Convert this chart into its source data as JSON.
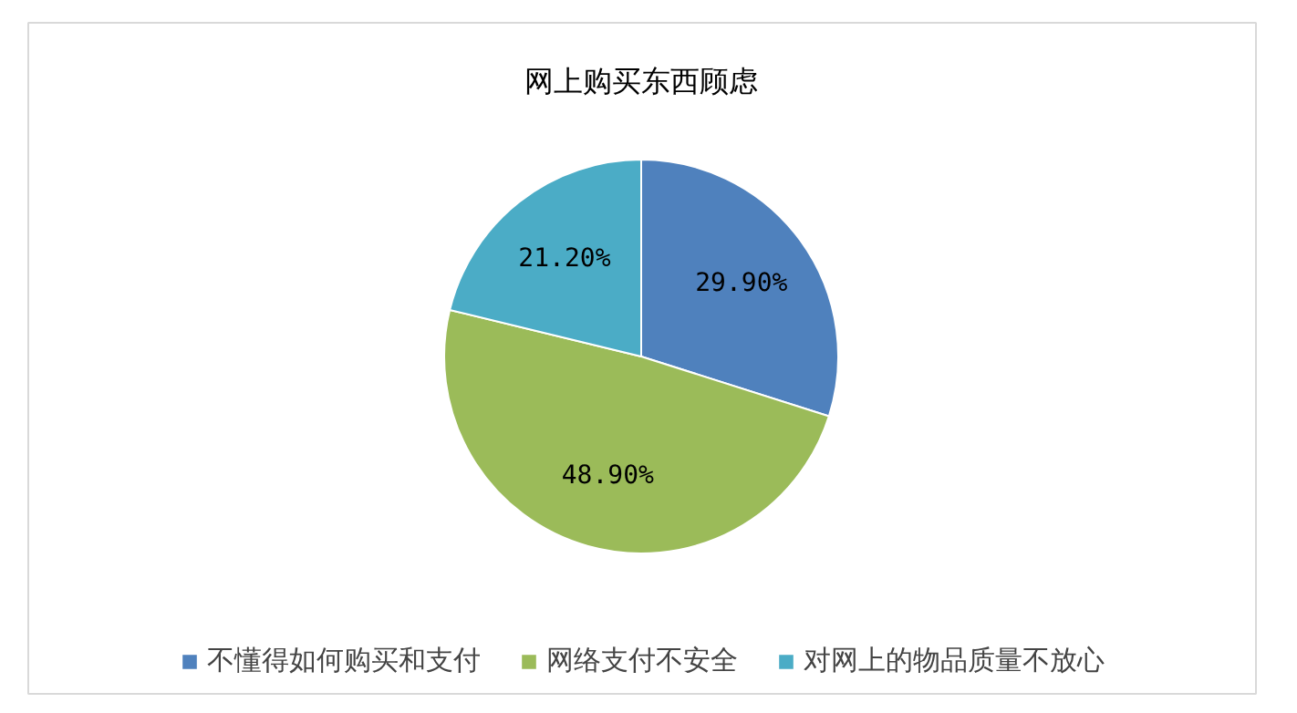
{
  "chart_data": {
    "type": "pie",
    "title": "网上购买东西顾虑",
    "categories": [
      "不懂得如何购买和支付",
      "网络支付不安全",
      "对网上的物品质量不放心"
    ],
    "values": [
      29.9,
      48.9,
      21.2
    ],
    "colors": [
      "#4f81bd",
      "#9bbb59",
      "#4bacc6"
    ],
    "value_labels": [
      "29.90%",
      "48.90%",
      "21.20%"
    ],
    "legend": "bottom"
  }
}
